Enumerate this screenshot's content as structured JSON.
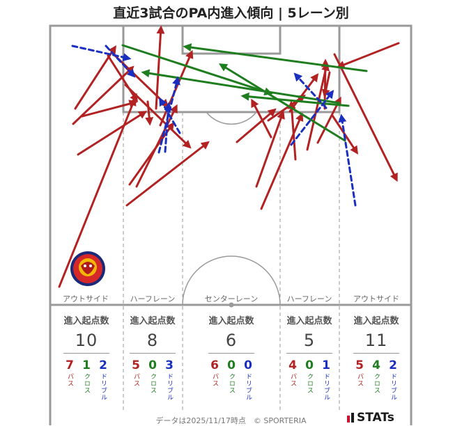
{
  "title": "直近3試合のPA内進入傾向 | 5レーン別",
  "lanes": [
    {
      "label": "アウトサイド",
      "stat_header": "進入起点数",
      "total": "10",
      "pass": "7",
      "cross": "1",
      "dribble": "2"
    },
    {
      "label": "ハーフレーン",
      "stat_header": "進入起点数",
      "total": "8",
      "pass": "5",
      "cross": "0",
      "dribble": "3"
    },
    {
      "label": "センターレーン",
      "stat_header": "進入起点数",
      "total": "6",
      "pass": "6",
      "cross": "0",
      "dribble": "0"
    },
    {
      "label": "ハーフレーン",
      "stat_header": "進入起点数",
      "total": "5",
      "pass": "4",
      "cross": "0",
      "dribble": "1"
    },
    {
      "label": "アウトサイド",
      "stat_header": "進入起点数",
      "total": "11",
      "pass": "5",
      "cross": "4",
      "dribble": "2"
    }
  ],
  "type_labels": {
    "pass": "パス",
    "cross": "クロス",
    "dribble": "ドリブル"
  },
  "footer": "データは2025/11/17時点　© SPORTERIA",
  "brand": "STATs",
  "colors": {
    "pass": "#b22222",
    "cross": "#1e7d1e",
    "dribble": "#1a2fbf",
    "lines": "#9a9a9a"
  },
  "chart_data": {
    "type": "scatter",
    "title": "直近3試合のPA内進入傾向 | 5レーン別",
    "categories": [
      "アウトサイド",
      "ハーフレーン",
      "センターレーン",
      "ハーフレーン",
      "アウトサイド"
    ],
    "series": [
      {
        "name": "パス",
        "values": [
          7,
          5,
          6,
          4,
          5
        ]
      },
      {
        "name": "クロス",
        "values": [
          1,
          0,
          0,
          0,
          4
        ]
      },
      {
        "name": "ドリブル",
        "values": [
          2,
          3,
          0,
          1,
          2
        ]
      }
    ],
    "totals": [
      10,
      8,
      6,
      5,
      11
    ],
    "arrows": [
      {
        "kind": "pass",
        "from": [
          85,
          412
        ],
        "to": [
          193,
          143
        ]
      },
      {
        "kind": "pass",
        "from": [
          108,
          156
        ],
        "to": [
          165,
          68
        ]
      },
      {
        "kind": "pass",
        "from": [
          105,
          178
        ],
        "to": [
          190,
          97
        ]
      },
      {
        "kind": "pass",
        "from": [
          112,
          222
        ],
        "to": [
          208,
          161
        ]
      },
      {
        "kind": "pass",
        "from": [
          118,
          167
        ],
        "to": [
          194,
          147
        ]
      },
      {
        "kind": "pass",
        "from": [
          162,
          77
        ],
        "to": [
          240,
          152
        ]
      },
      {
        "kind": "pass",
        "from": [
          155,
          80
        ],
        "to": [
          196,
          144
        ]
      },
      {
        "kind": "pass",
        "from": [
          180,
          122
        ],
        "to": [
          272,
          211
        ]
      },
      {
        "kind": "pass",
        "from": [
          196,
          268
        ],
        "to": [
          253,
          153
        ]
      },
      {
        "kind": "pass",
        "from": [
          182,
          295
        ],
        "to": [
          298,
          205
        ]
      },
      {
        "kind": "pass",
        "from": [
          186,
          265
        ],
        "to": [
          248,
          178
        ]
      },
      {
        "kind": "pass",
        "from": [
          224,
          156
        ],
        "to": [
          231,
          40
        ]
      },
      {
        "kind": "pass",
        "from": [
          230,
          180
        ],
        "to": [
          275,
          75
        ]
      },
      {
        "kind": "pass",
        "from": [
          212,
          146
        ],
        "to": [
          215,
          177
        ]
      },
      {
        "kind": "pass",
        "from": [
          340,
          204
        ],
        "to": [
          394,
          158
        ]
      },
      {
        "kind": "pass",
        "from": [
          375,
          300
        ],
        "to": [
          433,
          165
        ]
      },
      {
        "kind": "pass",
        "from": [
          368,
          268
        ],
        "to": [
          406,
          162
        ]
      },
      {
        "kind": "pass",
        "from": [
          389,
          197
        ],
        "to": [
          362,
          145
        ]
      },
      {
        "kind": "pass",
        "from": [
          385,
          173
        ],
        "to": [
          436,
          138
        ]
      },
      {
        "kind": "pass",
        "from": [
          416,
          160
        ],
        "to": [
          455,
          108
        ]
      },
      {
        "kind": "pass",
        "from": [
          424,
          229
        ],
        "to": [
          418,
          148
        ]
      },
      {
        "kind": "pass",
        "from": [
          441,
          215
        ],
        "to": [
          469,
          93
        ]
      },
      {
        "kind": "pass",
        "from": [
          456,
          205
        ],
        "to": [
          488,
          142
        ]
      },
      {
        "kind": "pass",
        "from": [
          466,
          156
        ],
        "to": [
          467,
          88
        ]
      },
      {
        "kind": "pass",
        "from": [
          473,
          104
        ],
        "to": [
          466,
          137
        ]
      },
      {
        "kind": "pass",
        "from": [
          480,
          78
        ],
        "to": [
          569,
          258
        ]
      },
      {
        "kind": "pass",
        "from": [
          477,
          166
        ],
        "to": [
          512,
          219
        ]
      },
      {
        "kind": "pass",
        "from": [
          572,
          62
        ],
        "to": [
          486,
          96
        ]
      },
      {
        "kind": "cross",
        "from": [
          176,
          65
        ],
        "to": [
          388,
          134
        ]
      },
      {
        "kind": "cross",
        "from": [
          526,
          102
        ],
        "to": [
          266,
          67
        ]
      },
      {
        "kind": "cross",
        "from": [
          487,
          148
        ],
        "to": [
          206,
          104
        ]
      },
      {
        "kind": "cross",
        "from": [
          500,
          152
        ],
        "to": [
          349,
          138
        ]
      },
      {
        "kind": "cross",
        "from": [
          495,
          202
        ],
        "to": [
          317,
          93
        ]
      },
      {
        "kind": "dribble",
        "from": [
          104,
          66
        ],
        "to": [
          185,
          84
        ]
      },
      {
        "kind": "dribble",
        "from": [
          152,
          66
        ],
        "to": [
          192,
          109
        ]
      },
      {
        "kind": "dribble",
        "from": [
          228,
          219
        ],
        "to": [
          255,
          113
        ]
      },
      {
        "kind": "dribble",
        "from": [
          258,
          191
        ],
        "to": [
          230,
          143
        ]
      },
      {
        "kind": "dribble",
        "from": [
          237,
          218
        ],
        "to": [
          242,
          150
        ]
      },
      {
        "kind": "dribble",
        "from": [
          418,
          208
        ],
        "to": [
          477,
          132
        ]
      },
      {
        "kind": "dribble",
        "from": [
          468,
          155
        ],
        "to": [
          424,
          107
        ]
      },
      {
        "kind": "dribble",
        "from": [
          510,
          295
        ],
        "to": [
          490,
          167
        ]
      }
    ]
  }
}
